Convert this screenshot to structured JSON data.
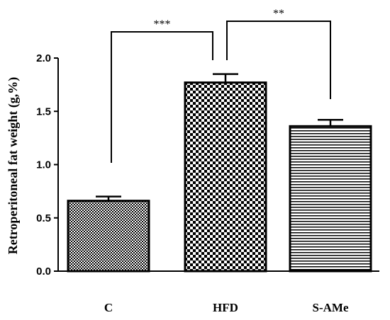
{
  "chart_data": {
    "type": "bar",
    "y_label": "Retroperitoneal fat weight (g,%)",
    "categories": [
      "C",
      "HFD",
      "S-AMe"
    ],
    "values": [
      0.66,
      1.77,
      1.36
    ],
    "errors": [
      0.04,
      0.08,
      0.06
    ],
    "ylim": [
      0,
      2.0
    ],
    "yticks": [
      {
        "value": 0,
        "label": "0.0"
      },
      0.5,
      {
        "value": 1.0,
        "label": "1.0"
      },
      1.5,
      {
        "value": 2.0,
        "label": "2.0"
      }
    ],
    "color": "#000000",
    "annotations": [
      {
        "text": "***",
        "between": [
          0,
          1
        ]
      },
      {
        "text": "**",
        "between": [
          1,
          2
        ]
      }
    ]
  }
}
